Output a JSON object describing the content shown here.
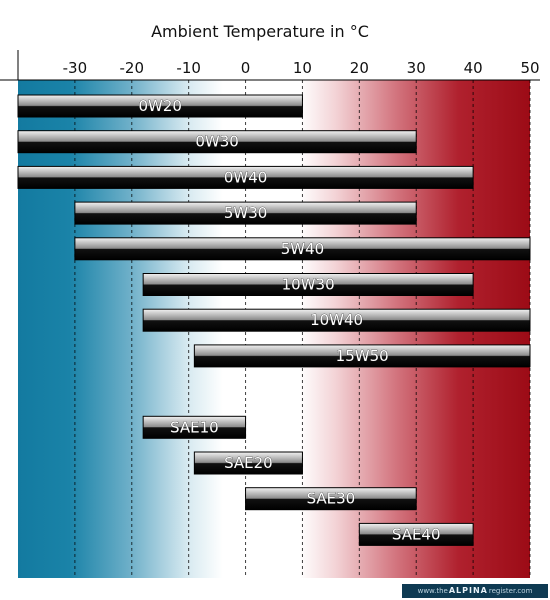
{
  "chart_data": {
    "type": "bar",
    "orientation": "horizontal-range",
    "title": "Ambient Temperature in °C",
    "xlim": [
      -40,
      50
    ],
    "x_ticks": [
      -30,
      -20,
      -10,
      0,
      10,
      20,
      30,
      40,
      50
    ],
    "grid": "dashed vertical",
    "background": "gradient from blue (cold) through white (~0–10 °C) to red (hot)",
    "categories": [
      "0W20",
      "0W30",
      "0W40",
      "5W30",
      "5W40",
      "10W30",
      "10W40",
      "15W50",
      "SAE10",
      "SAE20",
      "SAE30",
      "SAE40"
    ],
    "ranges": [
      {
        "label": "0W20",
        "from": -40,
        "to": 10
      },
      {
        "label": "0W30",
        "from": -40,
        "to": 30
      },
      {
        "label": "0W40",
        "from": -40,
        "to": 40
      },
      {
        "label": "5W30",
        "from": -30,
        "to": 30
      },
      {
        "label": "5W40",
        "from": -30,
        "to": 50
      },
      {
        "label": "10W30",
        "from": -18,
        "to": 40
      },
      {
        "label": "10W40",
        "from": -18,
        "to": 50
      },
      {
        "label": "15W50",
        "from": -9,
        "to": 50
      },
      {
        "label": "SAE10",
        "from": -18,
        "to": 0
      },
      {
        "label": "SAE20",
        "from": -9,
        "to": 10
      },
      {
        "label": "SAE30",
        "from": 0,
        "to": 30
      },
      {
        "label": "SAE40",
        "from": 20,
        "to": 40
      }
    ]
  },
  "watermark": {
    "prefix": "www.the",
    "brand": "ALPINA",
    "suffix": "register.com"
  },
  "colors": {
    "cold": "#137aa0",
    "neutral": "#ffffff",
    "hot": "#9c0b16",
    "bar_dark": "#000000",
    "bar_light": "#b8b8b8"
  }
}
